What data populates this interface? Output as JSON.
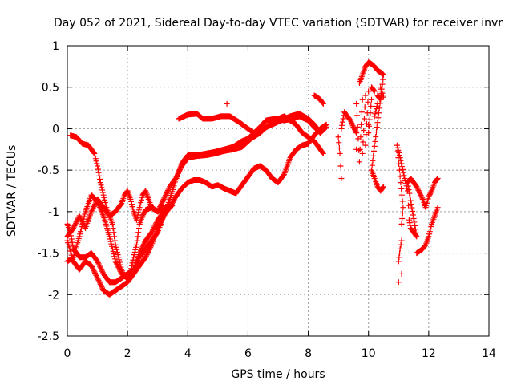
{
  "chart_data": {
    "type": "scatter",
    "title": "Day 052 of 2021, Sidereal Day-to-day VTEC variation (SDTVAR) for receiver invr",
    "xlabel": "GPS time / hours",
    "ylabel": "SDTVAR / TECUs",
    "xlim": [
      0,
      14
    ],
    "ylim": [
      -2.5,
      1
    ],
    "xticks": [
      0,
      2,
      4,
      6,
      8,
      10,
      12,
      14
    ],
    "xtick_labels": [
      "0",
      "2",
      "4",
      "6",
      "8",
      "10",
      "12",
      "14"
    ],
    "yticks": [
      -2.5,
      -2,
      -1.5,
      -1,
      -0.5,
      0,
      0.5,
      1
    ],
    "ytick_labels": [
      "-2.5",
      "-2",
      "-1.5",
      "-1",
      "-0.5",
      "0",
      "0.5",
      "1"
    ],
    "grid": true,
    "marker": "+",
    "color": "#ff0000",
    "series": [
      {
        "points": [
          [
            0.0,
            -1.3
          ],
          [
            0.2,
            -1.2
          ],
          [
            0.4,
            -1.05
          ],
          [
            0.6,
            -1.2
          ],
          [
            0.8,
            -1.0
          ],
          [
            1.0,
            -0.85
          ],
          [
            1.2,
            -0.95
          ],
          [
            1.4,
            -1.05
          ],
          [
            1.6,
            -1.0
          ],
          [
            1.8,
            -0.9
          ],
          [
            1.9,
            -0.8
          ],
          [
            2.0,
            -0.75
          ],
          [
            2.1,
            -0.85
          ],
          [
            2.2,
            -1.0
          ],
          [
            2.3,
            -1.1
          ],
          [
            2.4,
            -0.95
          ],
          [
            2.5,
            -0.8
          ],
          [
            2.6,
            -0.75
          ],
          [
            2.7,
            -0.85
          ],
          [
            2.8,
            -0.95
          ],
          [
            3.0,
            -1.0
          ],
          [
            3.2,
            -0.85
          ],
          [
            3.4,
            -0.7
          ],
          [
            3.6,
            -0.6
          ],
          [
            3.8,
            -0.45
          ],
          [
            4.0,
            -0.35
          ],
          [
            4.3,
            -0.33
          ],
          [
            4.6,
            -0.32
          ],
          [
            4.9,
            -0.3
          ],
          [
            5.2,
            -0.27
          ],
          [
            5.5,
            -0.25
          ],
          [
            5.8,
            -0.22
          ],
          [
            6.1,
            -0.12
          ],
          [
            6.4,
            -0.05
          ],
          [
            6.7,
            0.05
          ],
          [
            7.0,
            0.12
          ],
          [
            7.2,
            0.15
          ],
          [
            7.4,
            0.1
          ],
          [
            7.6,
            0.05
          ],
          [
            7.8,
            -0.05
          ],
          [
            8.0,
            -0.1
          ],
          [
            8.2,
            -0.15
          ],
          [
            8.4,
            -0.25
          ],
          [
            8.5,
            -0.3
          ]
        ]
      },
      {
        "points": [
          [
            0.0,
            -1.6
          ],
          [
            0.2,
            -1.55
          ],
          [
            0.4,
            -1.3
          ],
          [
            0.6,
            -1.0
          ],
          [
            0.8,
            -0.8
          ],
          [
            1.0,
            -0.88
          ],
          [
            1.2,
            -1.05
          ],
          [
            1.4,
            -1.3
          ],
          [
            1.6,
            -1.6
          ],
          [
            1.8,
            -1.75
          ],
          [
            2.0,
            -1.8
          ],
          [
            2.2,
            -1.75
          ],
          [
            2.4,
            -1.55
          ],
          [
            2.6,
            -1.45
          ],
          [
            2.8,
            -1.35
          ],
          [
            3.0,
            -1.25
          ],
          [
            3.2,
            -1.05
          ],
          [
            3.4,
            -0.95
          ],
          [
            3.6,
            -0.82
          ],
          [
            3.8,
            -0.72
          ],
          [
            4.0,
            -0.65
          ],
          [
            4.2,
            -0.62
          ],
          [
            4.4,
            -0.62
          ],
          [
            4.6,
            -0.65
          ],
          [
            4.8,
            -0.7
          ],
          [
            5.0,
            -0.68
          ],
          [
            5.2,
            -0.72
          ],
          [
            5.4,
            -0.75
          ],
          [
            5.6,
            -0.78
          ],
          [
            5.8,
            -0.68
          ],
          [
            6.0,
            -0.58
          ],
          [
            6.2,
            -0.48
          ],
          [
            6.4,
            -0.45
          ],
          [
            6.6,
            -0.5
          ],
          [
            6.8,
            -0.6
          ],
          [
            7.0,
            -0.65
          ],
          [
            7.2,
            -0.55
          ],
          [
            7.4,
            -0.35
          ],
          [
            7.6,
            -0.25
          ],
          [
            7.8,
            -0.2
          ],
          [
            8.0,
            -0.18
          ],
          [
            8.2,
            -0.08
          ],
          [
            8.4,
            0.0
          ],
          [
            8.6,
            0.05
          ]
        ]
      },
      {
        "points": [
          [
            0.0,
            -1.35
          ],
          [
            0.2,
            -1.6
          ],
          [
            0.4,
            -1.7
          ],
          [
            0.6,
            -1.6
          ],
          [
            0.8,
            -1.65
          ],
          [
            1.0,
            -1.8
          ],
          [
            1.2,
            -1.95
          ],
          [
            1.4,
            -2.0
          ],
          [
            1.6,
            -1.95
          ],
          [
            1.8,
            -1.9
          ],
          [
            2.0,
            -1.85
          ],
          [
            2.2,
            -1.75
          ],
          [
            2.4,
            -1.65
          ],
          [
            2.6,
            -1.55
          ],
          [
            2.8,
            -1.4
          ],
          [
            3.0,
            -1.2
          ],
          [
            3.2,
            -1.05
          ],
          [
            3.4,
            -0.85
          ],
          [
            3.6,
            -0.62
          ],
          [
            3.8,
            -0.42
          ],
          [
            4.0,
            -0.32
          ],
          [
            4.3,
            -0.32
          ],
          [
            4.6,
            -0.3
          ],
          [
            4.9,
            -0.28
          ],
          [
            5.2,
            -0.25
          ],
          [
            5.5,
            -0.22
          ],
          [
            5.8,
            -0.15
          ],
          [
            6.0,
            -0.12
          ],
          [
            6.2,
            -0.05
          ],
          [
            6.5,
            0.0
          ],
          [
            6.8,
            0.05
          ],
          [
            7.1,
            0.1
          ],
          [
            7.4,
            0.15
          ],
          [
            7.7,
            0.18
          ],
          [
            8.0,
            0.12
          ],
          [
            8.2,
            0.05
          ],
          [
            8.4,
            -0.05
          ]
        ]
      },
      {
        "points": [
          [
            0.0,
            -1.15
          ],
          [
            0.1,
            -1.25
          ],
          [
            0.2,
            -1.45
          ],
          [
            0.4,
            -1.55
          ],
          [
            0.6,
            -1.55
          ],
          [
            0.8,
            -1.5
          ],
          [
            1.0,
            -1.6
          ],
          [
            1.2,
            -1.75
          ],
          [
            1.4,
            -1.85
          ],
          [
            1.6,
            -1.85
          ],
          [
            1.8,
            -1.8
          ],
          [
            2.0,
            -1.75
          ],
          [
            2.2,
            -1.7
          ],
          [
            2.4,
            -1.5
          ],
          [
            2.6,
            -1.35
          ],
          [
            2.8,
            -1.25
          ],
          [
            3.0,
            -1.1
          ],
          [
            3.2,
            -1.0
          ],
          [
            3.4,
            -0.95
          ],
          [
            3.5,
            -0.92
          ]
        ]
      },
      {
        "points": [
          [
            0.1,
            -0.08
          ],
          [
            0.3,
            -0.1
          ],
          [
            0.5,
            -0.18
          ],
          [
            0.7,
            -0.2
          ],
          [
            0.9,
            -0.3
          ],
          [
            1.0,
            -0.45
          ],
          [
            1.1,
            -0.65
          ],
          [
            1.2,
            -0.8
          ],
          [
            1.3,
            -0.95
          ],
          [
            1.4,
            -1.05
          ],
          [
            1.5,
            -1.15
          ],
          [
            1.6,
            -1.4
          ],
          [
            1.7,
            -1.55
          ],
          [
            1.8,
            -1.7
          ],
          [
            1.9,
            -1.78
          ],
          [
            2.0,
            -1.8
          ],
          [
            2.1,
            -1.72
          ],
          [
            2.2,
            -1.55
          ],
          [
            2.3,
            -1.4
          ],
          [
            2.4,
            -1.15
          ],
          [
            2.5,
            -1.05
          ],
          [
            2.6,
            -0.98
          ],
          [
            2.8,
            -0.95
          ],
          [
            3.0,
            -1.0
          ],
          [
            3.2,
            -0.95
          ],
          [
            3.3,
            -0.95
          ]
        ]
      },
      {
        "points": [
          [
            3.7,
            0.12
          ],
          [
            4.0,
            0.17
          ],
          [
            4.3,
            0.18
          ],
          [
            4.5,
            0.12
          ],
          [
            4.8,
            0.12
          ],
          [
            5.1,
            0.15
          ],
          [
            5.4,
            0.15
          ],
          [
            5.7,
            0.08
          ],
          [
            6.0,
            0.0
          ],
          [
            6.2,
            -0.05
          ],
          [
            6.4,
            0.02
          ],
          [
            6.6,
            0.1
          ],
          [
            6.9,
            0.12
          ],
          [
            7.2,
            0.1
          ],
          [
            7.5,
            0.12
          ],
          [
            7.7,
            0.15
          ],
          [
            8.0,
            0.1
          ],
          [
            8.2,
            0.02
          ],
          [
            8.4,
            -0.05
          ],
          [
            8.6,
            0.02
          ],
          [
            5.3,
            0.3
          ]
        ]
      },
      {
        "points": [
          [
            8.2,
            0.4
          ],
          [
            8.3,
            0.38
          ],
          [
            8.4,
            0.35
          ],
          [
            8.5,
            0.3
          ],
          [
            9.0,
            -0.1
          ],
          [
            9.05,
            -0.3
          ],
          [
            9.1,
            -0.6
          ],
          [
            9.1,
            0.0
          ],
          [
            9.2,
            0.2
          ],
          [
            9.3,
            0.15
          ],
          [
            9.4,
            0.1
          ],
          [
            9.5,
            0.02
          ],
          [
            9.6,
            -0.05
          ],
          [
            9.6,
            -0.25
          ],
          [
            9.6,
            0.3
          ],
          [
            9.7,
            -0.4
          ],
          [
            9.8,
            0.35
          ],
          [
            9.8,
            -0.3
          ],
          [
            9.9,
            0.4
          ],
          [
            9.9,
            -0.2
          ],
          [
            10.0,
            0.45
          ],
          [
            10.0,
            0.05
          ],
          [
            10.0,
            -0.05
          ],
          [
            10.1,
            0.35
          ],
          [
            10.1,
            0.5
          ],
          [
            10.2,
            0.45
          ],
          [
            10.2,
            0.15
          ],
          [
            10.3,
            0.3
          ],
          [
            10.3,
            0.4
          ],
          [
            10.4,
            0.35
          ],
          [
            10.4,
            0.5
          ],
          [
            10.5,
            0.38
          ],
          [
            9.7,
            0.55
          ],
          [
            9.8,
            0.65
          ],
          [
            9.9,
            0.75
          ],
          [
            10.0,
            0.8
          ],
          [
            10.1,
            0.78
          ],
          [
            10.2,
            0.75
          ],
          [
            10.3,
            0.7
          ],
          [
            10.4,
            0.68
          ],
          [
            10.5,
            0.65
          ],
          [
            10.1,
            -0.5
          ],
          [
            10.2,
            -0.6
          ],
          [
            10.3,
            -0.7
          ],
          [
            10.4,
            -0.75
          ],
          [
            10.5,
            -0.7
          ]
        ]
      },
      {
        "points": [
          [
            11.0,
            -1.85
          ],
          [
            11.0,
            -1.6
          ],
          [
            11.05,
            -1.45
          ],
          [
            11.1,
            -1.35
          ],
          [
            11.1,
            -1.15
          ],
          [
            11.15,
            -0.95
          ],
          [
            10.95,
            -0.2
          ],
          [
            11.05,
            -0.35
          ],
          [
            11.2,
            -0.6
          ],
          [
            11.3,
            -0.75
          ],
          [
            11.35,
            -1.1
          ],
          [
            11.4,
            -1.2
          ],
          [
            11.5,
            -1.25
          ],
          [
            11.6,
            -1.3
          ],
          [
            11.3,
            -0.65
          ],
          [
            11.4,
            -0.6
          ],
          [
            11.6,
            -0.7
          ],
          [
            11.8,
            -0.85
          ],
          [
            11.9,
            -0.95
          ],
          [
            12.0,
            -0.82
          ],
          [
            12.1,
            -0.75
          ],
          [
            12.2,
            -0.65
          ],
          [
            12.3,
            -0.6
          ],
          [
            11.6,
            -1.5
          ],
          [
            11.8,
            -1.45
          ],
          [
            11.9,
            -1.4
          ],
          [
            12.0,
            -1.3
          ],
          [
            12.1,
            -1.15
          ],
          [
            12.2,
            -1.05
          ],
          [
            12.3,
            -0.95
          ],
          [
            11.1,
            -1.75
          ]
        ]
      }
    ]
  }
}
